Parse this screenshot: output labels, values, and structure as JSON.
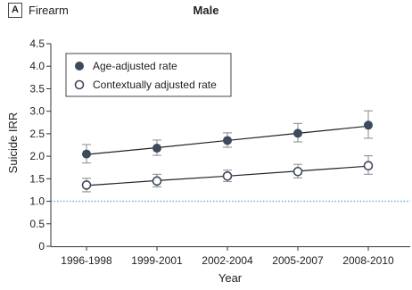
{
  "panel": {
    "label": "A",
    "subject": "Firearm"
  },
  "chart_data": {
    "type": "line",
    "title": "Male",
    "xlabel": "Year",
    "ylabel": "Suicide IRR",
    "ylim": [
      0,
      4.5
    ],
    "yticks": [
      "0",
      "0.5",
      "1.0",
      "1.5",
      "2.0",
      "2.5",
      "3.0",
      "3.5",
      "4.0",
      "4.5"
    ],
    "categories": [
      "1996-1998",
      "1999-2001",
      "2002-2004",
      "2005-2007",
      "2008-2010"
    ],
    "reference_line": {
      "y": 1.0,
      "color": "#4fb3d9",
      "style": "dotted"
    },
    "legend_position": "top-left",
    "series": [
      {
        "name": "Age-adjusted rate",
        "marker": "filled-circle",
        "color": "#3d4a5c",
        "values": [
          2.05,
          2.18,
          2.35,
          2.51,
          2.69
        ],
        "lower": [
          1.85,
          2.02,
          2.2,
          2.32,
          2.4
        ],
        "upper": [
          2.26,
          2.36,
          2.52,
          2.73,
          3.01
        ],
        "trend": [
          2.04,
          2.19,
          2.35,
          2.51,
          2.67
        ]
      },
      {
        "name": "Contextually adjusted rate",
        "marker": "open-circle",
        "color": "#3d4a5c",
        "values": [
          1.36,
          1.45,
          1.56,
          1.66,
          1.79
        ],
        "lower": [
          1.21,
          1.32,
          1.44,
          1.52,
          1.6
        ],
        "upper": [
          1.51,
          1.6,
          1.69,
          1.82,
          2.01
        ],
        "trend": [
          1.35,
          1.46,
          1.56,
          1.67,
          1.78
        ]
      }
    ]
  }
}
